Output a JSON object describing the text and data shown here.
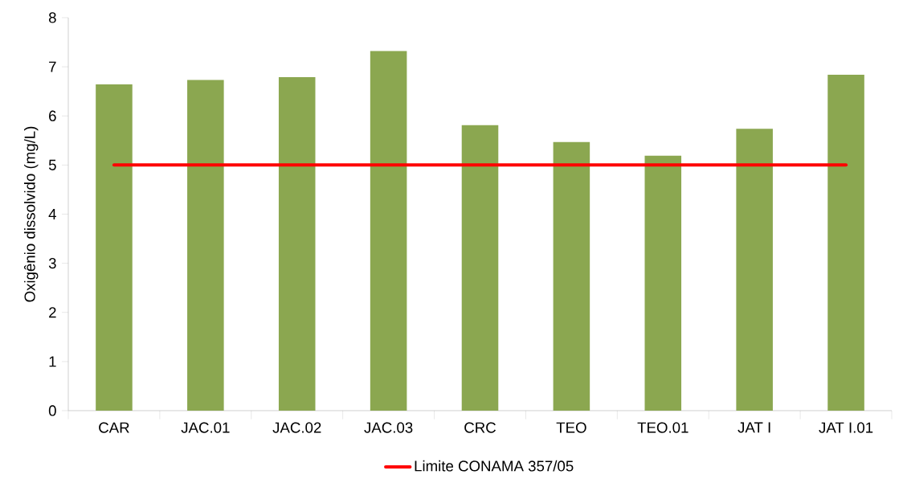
{
  "chart_data": {
    "type": "bar",
    "ylabel": "Oxigênio dissolvido (mg/L)",
    "categories": [
      "CAR",
      "JAC.01",
      "JAC.02",
      "JAC.03",
      "CRC",
      "TEO",
      "TEO.01",
      "JAT I",
      "JAT I.01"
    ],
    "series": [
      {
        "color": "#8ba750",
        "values": [
          6.64,
          6.73,
          6.79,
          7.32,
          5.81,
          5.47,
          5.19,
          5.74,
          6.84
        ]
      },
      {
        "type": "line",
        "name": "Limite CONAMA 357/05",
        "color": "#ff0000",
        "values": [
          5,
          5,
          5,
          5,
          5,
          5,
          5,
          5,
          5
        ]
      }
    ],
    "ylim": [
      0,
      8
    ],
    "yticks": [
      0,
      1,
      2,
      3,
      4,
      5,
      6,
      7,
      8
    ],
    "grid": false,
    "legend": "bottom"
  }
}
